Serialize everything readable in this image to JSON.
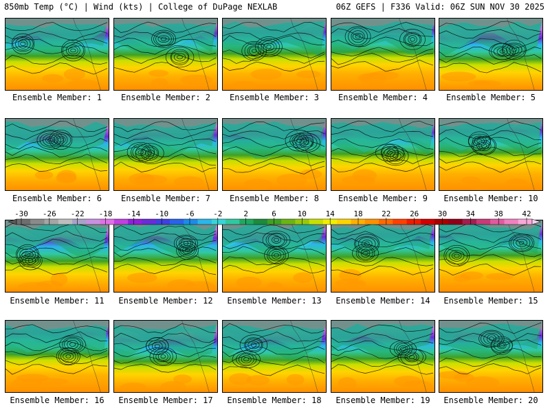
{
  "header": {
    "left": "850mb Temp (°C) | Wind (kts) | College of DuPage NEXLAB",
    "right": "06Z GEFS | F336 Valid: 06Z SUN NOV 30 2025"
  },
  "colorbar": {
    "tick_labels": [
      "-30",
      "-26",
      "-22",
      "-18",
      "-14",
      "-10",
      "-6",
      "-2",
      "2",
      "6",
      "10",
      "14",
      "18",
      "22",
      "26",
      "30",
      "34",
      "38",
      "42"
    ],
    "colors": [
      "#6e6e6e",
      "#8a8a8a",
      "#a5a5a5",
      "#bdbdbd",
      "#a8a2c8",
      "#c890e0",
      "#e070e8",
      "#c040e0",
      "#9020d8",
      "#6a2cd6",
      "#4040e0",
      "#2a62e8",
      "#1e8ae8",
      "#2ab6e8",
      "#38d4d8",
      "#30c8a0",
      "#20a860",
      "#1e8a3c",
      "#3fa024",
      "#6ab414",
      "#98c80c",
      "#c8e000",
      "#f0f000",
      "#ffd400",
      "#ffb000",
      "#ff9000",
      "#ff6a00",
      "#ff4000",
      "#f01c00",
      "#d00000",
      "#a80000",
      "#900018",
      "#a02050",
      "#c83a78",
      "#e05aa0",
      "#f080c0",
      "#f8a8d8"
    ]
  },
  "members": [
    {
      "label": "Ensemble Member: 1"
    },
    {
      "label": "Ensemble Member: 2"
    },
    {
      "label": "Ensemble Member: 3"
    },
    {
      "label": "Ensemble Member: 4"
    },
    {
      "label": "Ensemble Member: 5"
    },
    {
      "label": "Ensemble Member: 6"
    },
    {
      "label": "Ensemble Member: 7"
    },
    {
      "label": "Ensemble Member: 8"
    },
    {
      "label": "Ensemble Member: 9"
    },
    {
      "label": "Ensemble Member: 10"
    },
    {
      "label": "Ensemble Member: 11"
    },
    {
      "label": "Ensemble Member: 12"
    },
    {
      "label": "Ensemble Member: 13"
    },
    {
      "label": "Ensemble Member: 14"
    },
    {
      "label": "Ensemble Member: 15"
    },
    {
      "label": "Ensemble Member: 16"
    },
    {
      "label": "Ensemble Member: 17"
    },
    {
      "label": "Ensemble Member: 18"
    },
    {
      "label": "Ensemble Member: 19"
    },
    {
      "label": "Ensemble Member: 20"
    }
  ]
}
